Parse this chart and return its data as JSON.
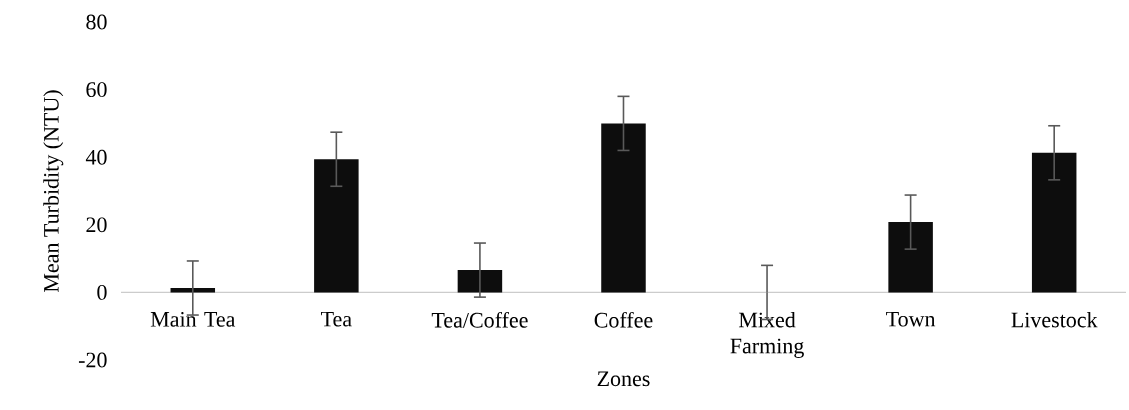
{
  "chart_data": {
    "type": "bar",
    "xlabel": "Zones",
    "ylabel": "Mean Turbidity (NTU)",
    "categories": [
      "Main Tea",
      "Tea",
      "Tea/Coffee",
      "Coffee",
      "Mixed Farming",
      "Town",
      "Livestock"
    ],
    "values": [
      1.3,
      39.4,
      6.6,
      50,
      0,
      20.8,
      41.3
    ],
    "errors": [
      8,
      8,
      8,
      8,
      8,
      8,
      8
    ],
    "color": "#0d0d0d",
    "ylim": [
      -20,
      80
    ],
    "yticks": [
      -20,
      0,
      20,
      40,
      60,
      80
    ]
  }
}
